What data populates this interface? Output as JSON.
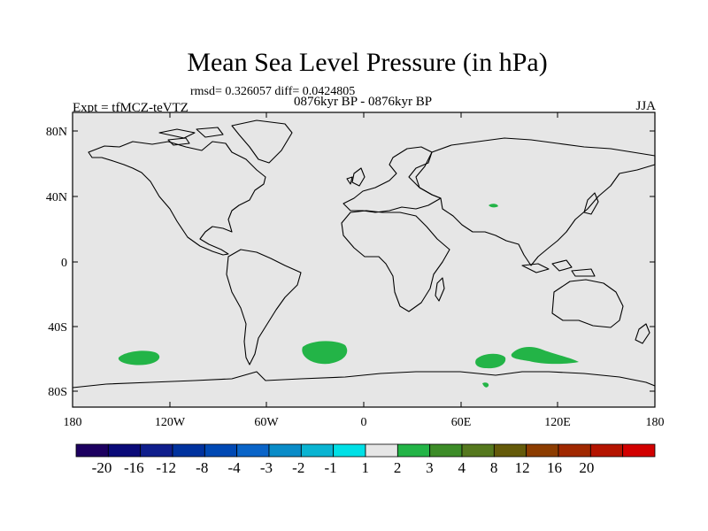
{
  "map": {
    "title": "Mean Sea Level Pressure (in hPa)",
    "stats": "rmsd= 0.326057 diff= 0.0424805",
    "period": "0876kyr BP - 0876kyr BP",
    "experiment": "Expt = tfMCZ-teVTZ",
    "season": "JJA",
    "background_color": "#e6e6e6",
    "lat_ticks": [
      "80N",
      "40N",
      "0",
      "40S",
      "80S"
    ],
    "lon_ticks": [
      "180",
      "120W",
      "60W",
      "0",
      "60E",
      "120E",
      "180"
    ],
    "anomaly_color": "#23b447",
    "anomaly_regions": [
      {
        "name": "South Pacific anomaly",
        "bin": "1 to 2"
      },
      {
        "name": "South Atlantic anomaly",
        "bin": "1 to 2"
      },
      {
        "name": "Southern Indian Ocean anomaly west",
        "bin": "1 to 2"
      },
      {
        "name": "Southern Indian Ocean anomaly east",
        "bin": "1 to 2"
      },
      {
        "name": "Central Asia anomaly",
        "bin": "1 to 2"
      },
      {
        "name": "Antarctic coast anomaly",
        "bin": "1 to 2"
      }
    ]
  },
  "colorbar": {
    "colors": [
      "#1d0060",
      "#0a0a78",
      "#0f1e8c",
      "#00329e",
      "#0049b4",
      "#0a64c8",
      "#0a8cc8",
      "#0ab4d2",
      "#00e0e6",
      "#e6e6e6",
      "#23b447",
      "#3c8c28",
      "#55781e",
      "#645a0a",
      "#8c3c00",
      "#a02800",
      "#b41400",
      "#d20000"
    ],
    "labels": [
      "-20",
      "-16",
      "-12",
      "-8",
      "-4",
      "-3",
      "-2",
      "-1",
      "1",
      "2",
      "3",
      "4",
      "8",
      "12",
      "16",
      "20"
    ]
  }
}
